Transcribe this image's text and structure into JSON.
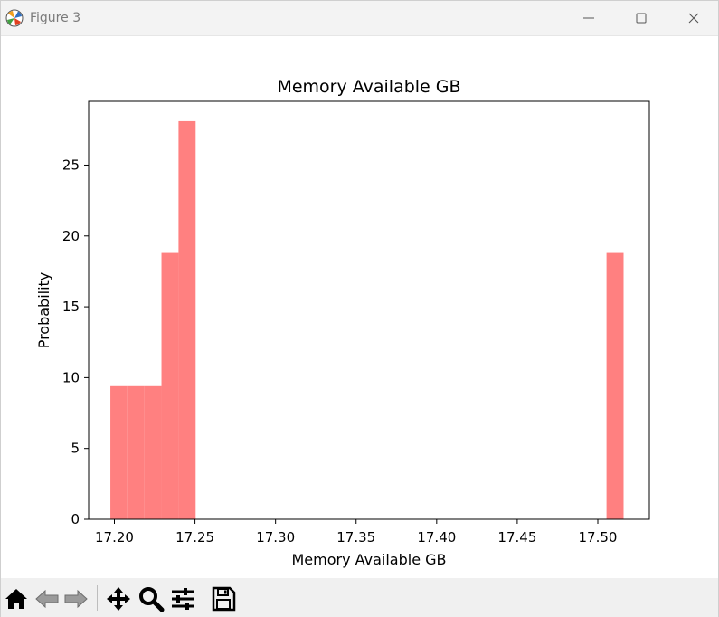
{
  "window": {
    "title": "Figure 3",
    "icons": {
      "app": "matplotlib-logo-icon",
      "minimize": "minimize-icon",
      "maximize": "maximize-icon",
      "close": "close-icon"
    }
  },
  "toolbar": {
    "buttons": [
      {
        "name": "home-button",
        "icon": "home-icon"
      },
      {
        "name": "back-button",
        "icon": "arrow-left-icon"
      },
      {
        "name": "forward-button",
        "icon": "arrow-right-icon"
      },
      {
        "name": "pan-button",
        "icon": "move-icon"
      },
      {
        "name": "zoom-button",
        "icon": "magnifier-icon"
      },
      {
        "name": "configure-subplots-button",
        "icon": "sliders-icon"
      },
      {
        "name": "save-button",
        "icon": "floppy-disk-icon"
      }
    ]
  },
  "chart_data": {
    "type": "bar",
    "title": "Memory Available GB",
    "xlabel": "Memory Available GB",
    "ylabel": "Probability",
    "xlim": [
      17.184,
      17.532
    ],
    "ylim": [
      0,
      29.5
    ],
    "xticks": [
      "17.20",
      "17.25",
      "17.30",
      "17.35",
      "17.40",
      "17.45",
      "17.50"
    ],
    "xtick_values": [
      17.2,
      17.25,
      17.3,
      17.35,
      17.4,
      17.45,
      17.5
    ],
    "yticks": [
      "0",
      "5",
      "10",
      "15",
      "20",
      "25"
    ],
    "ytick_values": [
      0,
      5,
      10,
      15,
      20,
      25
    ],
    "bin_edges": [
      17.1975,
      17.208,
      17.2186,
      17.2292,
      17.2398,
      17.2504,
      17.5054,
      17.516
    ],
    "bins": [
      {
        "x0": 17.1975,
        "x1": 17.208,
        "value": 9.4
      },
      {
        "x0": 17.208,
        "x1": 17.2186,
        "value": 9.4
      },
      {
        "x0": 17.2186,
        "x1": 17.2292,
        "value": 9.4
      },
      {
        "x0": 17.2292,
        "x1": 17.2398,
        "value": 18.8
      },
      {
        "x0": 17.2398,
        "x1": 17.2504,
        "value": 28.1
      },
      {
        "x0": 17.5054,
        "x1": 17.516,
        "value": 18.8
      }
    ],
    "bar_color": "#ff8080",
    "grid": false
  }
}
